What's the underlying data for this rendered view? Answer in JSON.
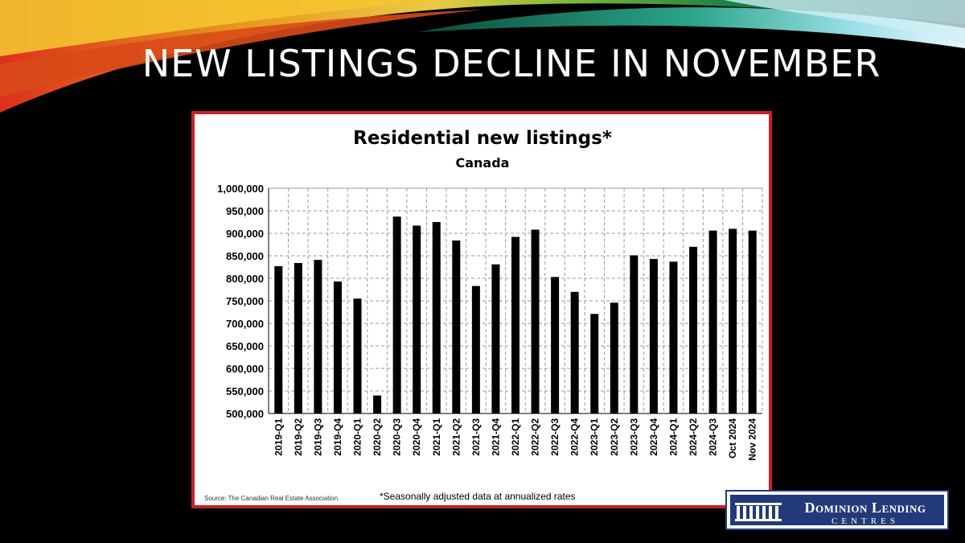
{
  "slide": {
    "title": "NEW LISTINGS DECLINE IN NOVEMBER"
  },
  "chart_data": {
    "type": "bar",
    "title": "Residential new listings*",
    "subtitle": "Canada",
    "categories": [
      "2019-Q1",
      "2019-Q2",
      "2019-Q3",
      "2019-Q4",
      "2020-Q1",
      "2020-Q2",
      "2020-Q3",
      "2020-Q4",
      "2021-Q1",
      "2021-Q2",
      "2021-Q3",
      "2021-Q4",
      "2022-Q1",
      "2022-Q2",
      "2022-Q3",
      "2022-Q4",
      "2023-Q1",
      "2023-Q2",
      "2023-Q3",
      "2023-Q4",
      "2024-Q1",
      "2024-Q2",
      "2024-Q3",
      "Oct 2024",
      "Nov 2024"
    ],
    "values": [
      827000,
      834000,
      841000,
      793000,
      755000,
      540000,
      937000,
      917000,
      925000,
      884000,
      783000,
      831000,
      892000,
      908000,
      803000,
      770000,
      721000,
      746000,
      851000,
      843000,
      837000,
      870000,
      906000,
      910000,
      906000
    ],
    "ylim": [
      500000,
      1000000
    ],
    "yticks": [
      "500,000",
      "550,000",
      "600,000",
      "650,000",
      "700,000",
      "750,000",
      "800,000",
      "850,000",
      "900,000",
      "950,000",
      "1,000,000"
    ],
    "xlabel": "",
    "ylabel": "",
    "grid": true,
    "bar_color": "#000000",
    "source": "Source: The Canadian Real Estate Association",
    "footnote": "*Seasonally adjusted data at annualized rates"
  },
  "logo": {
    "main": "Dominion Lending",
    "sub": "CENTRES",
    "colors": {
      "navy": "#233a7a",
      "frame": "#c8202a"
    }
  }
}
